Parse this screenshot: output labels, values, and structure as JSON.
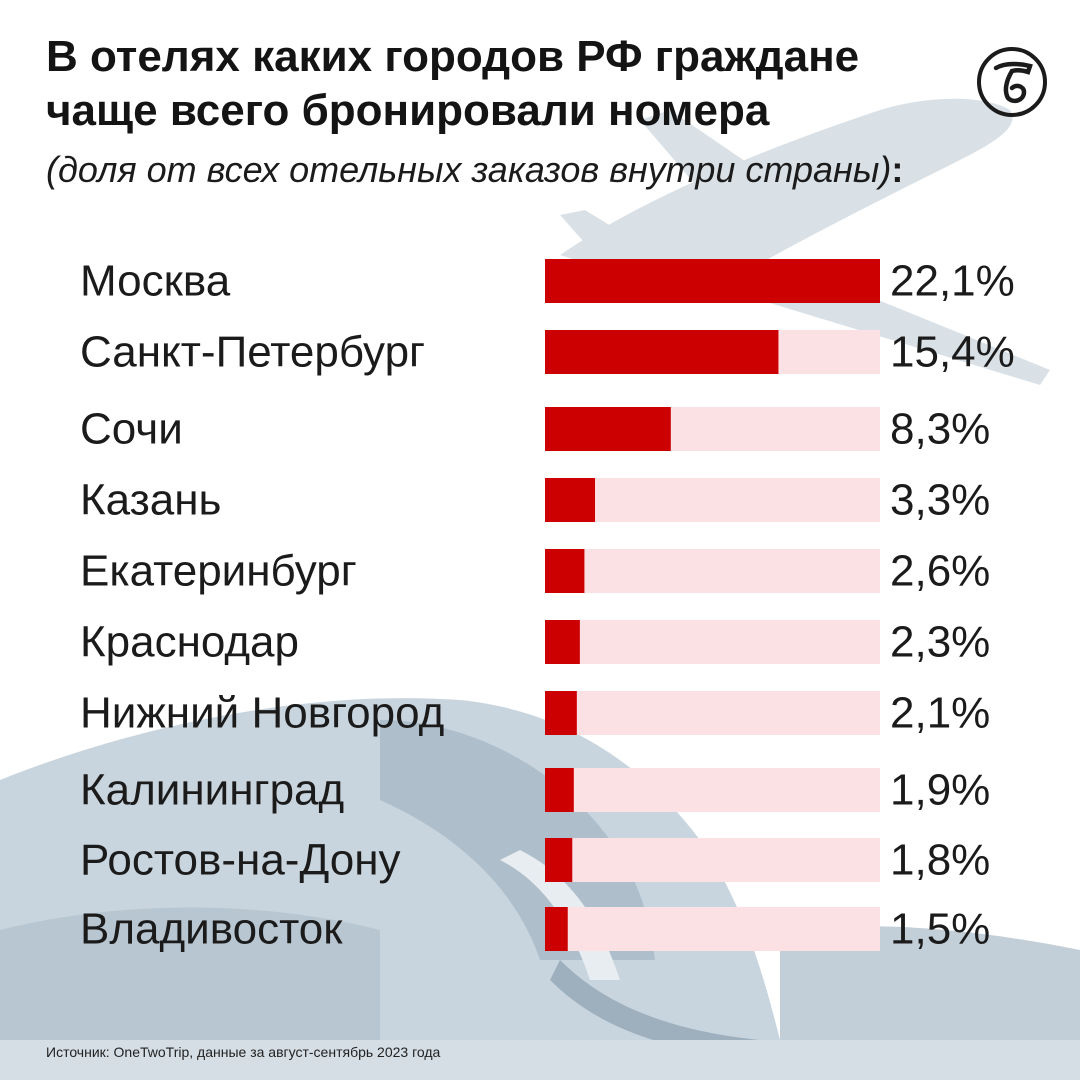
{
  "header": {
    "title_line1": "В отелях каких городов РФ граждане",
    "title_line2": "чаще всего бронировали номера",
    "subtitle": "(доля от всех отельных заказов внутри страны)",
    "subtitle_colon": ":"
  },
  "logo": {
    "icon": "newspaper-logo-icon"
  },
  "footer": {
    "source": "Источник: OneTwoTrip, данные за август-сентябрь 2023 года"
  },
  "colors": {
    "bar": "#cc0000",
    "bar_track": "#fbe1e3",
    "text": "#1b1b1b"
  },
  "chart_data": {
    "type": "bar",
    "orientation": "horizontal",
    "categories": [
      "Москва",
      "Санкт-Петербург",
      "Сочи",
      "Казань",
      "Екатеринбург",
      "Краснодар",
      "Нижний Новгород",
      "Калининград",
      "Ростов-на-Дону",
      "Владивосток"
    ],
    "values": [
      22.1,
      15.4,
      8.3,
      3.3,
      2.6,
      2.3,
      2.1,
      1.9,
      1.8,
      1.5
    ],
    "value_labels": [
      "22,1%",
      "15,4%",
      "8,3%",
      "3,3%",
      "2,6%",
      "2,3%",
      "2,1%",
      "1,9%",
      "1,8%",
      "1,5%"
    ],
    "xlim": [
      0,
      22.1
    ],
    "unit": "%",
    "grid": false,
    "legend": "none"
  }
}
